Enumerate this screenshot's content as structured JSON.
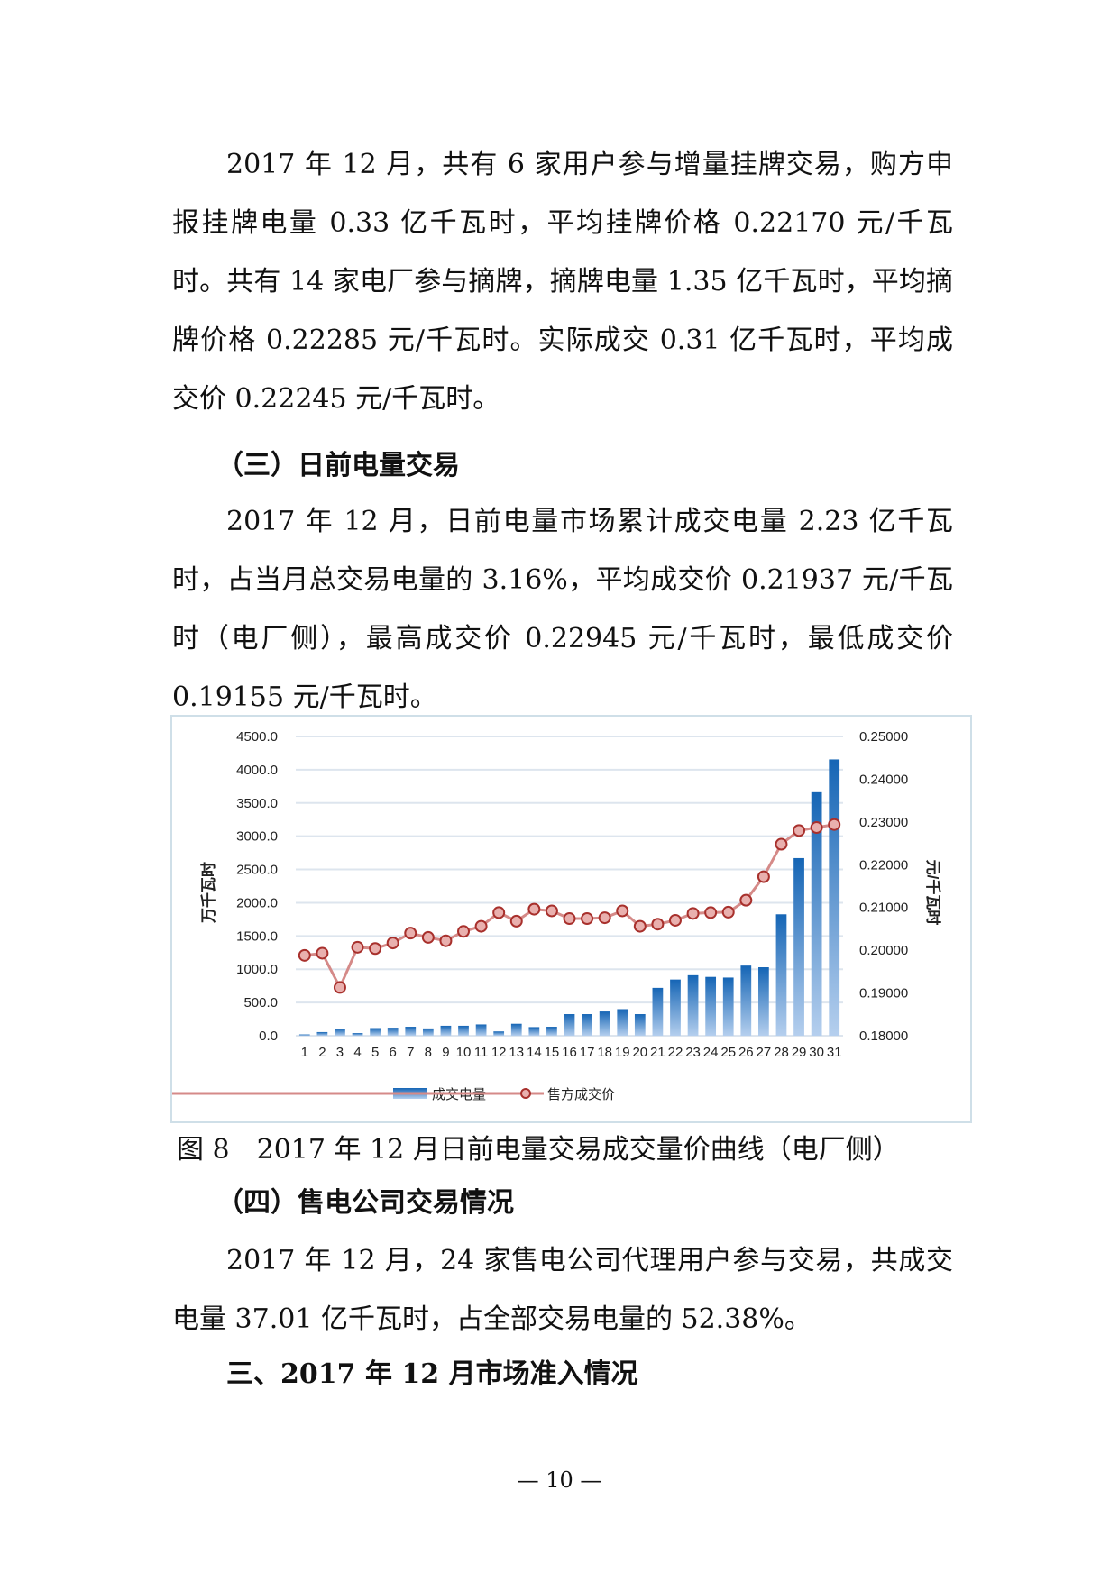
{
  "paragraphs": [
    "2017 年 12 月，共有 6 家用户参与增量挂牌交易，购方申报挂牌电量 0.33 亿千瓦时，平均挂牌价格 0.22170 元/千瓦时。共有 14 家电厂参与摘牌，摘牌电量 1.35 亿千瓦时，平均摘牌价格 0.22285 元/千瓦时。实际成交 0.31 亿千瓦时，平均成交价 0.22245 元/千瓦时。",
    "2017 年 12 月，日前电量市场累计成交电量 2.23 亿千瓦时，占当月总交易电量的 3.16%，平均成交价 0.21937 元/千瓦时（电厂侧），最高成交价 0.22945 元/千瓦时，最低成交价 0.19155 元/千瓦时。",
    "2017 年 12 月，24 家售电公司代理用户参与交易，共成交电量 37.01 亿千瓦时，占全部交易电量的 52.38%。"
  ],
  "headings": {
    "h3": "（三）日前电量交易",
    "h4": "（四）售电公司交易情况",
    "section3": "三、2017 年 12 月市场准入情况"
  },
  "caption": "图 8　2017 年 12 月日前电量交易成交量价曲线（电厂侧）",
  "page_number": "— 10 —",
  "chart_data": {
    "type": "bar+line",
    "categories": [
      "1",
      "2",
      "3",
      "4",
      "5",
      "6",
      "7",
      "8",
      "9",
      "10",
      "11",
      "12",
      "13",
      "14",
      "15",
      "16",
      "17",
      "18",
      "19",
      "20",
      "21",
      "22",
      "23",
      "24",
      "25",
      "26",
      "27",
      "28",
      "29",
      "30",
      "31"
    ],
    "ylabel": "万千瓦时",
    "y2label": "元/千瓦时",
    "ylim": [
      0,
      4500
    ],
    "y2lim": [
      0.18,
      0.25
    ],
    "yticks": [
      "0.0",
      "500.0",
      "1000.0",
      "1500.0",
      "2000.0",
      "2500.0",
      "3000.0",
      "3500.0",
      "4000.0",
      "4500.0"
    ],
    "y2ticks": [
      "0.18000",
      "0.19000",
      "0.20000",
      "0.21000",
      "0.22000",
      "0.23000",
      "0.24000",
      "0.25000"
    ],
    "grid": true,
    "legend_position": "bottom",
    "series": [
      {
        "name": "成交电量",
        "type": "bar",
        "axis": "left",
        "color": "#1f6fbf",
        "values": [
          20,
          55,
          105,
          40,
          115,
          120,
          135,
          110,
          150,
          150,
          170,
          65,
          180,
          130,
          135,
          325,
          325,
          365,
          400,
          325,
          720,
          845,
          910,
          885,
          875,
          1055,
          1030,
          1826,
          2671,
          3662,
          4155
        ]
      },
      {
        "name": "售方成交价",
        "type": "line",
        "axis": "right",
        "color": "#c0504d",
        "values": [
          0.1988,
          0.1993,
          0.1913,
          0.2007,
          0.2004,
          0.2017,
          0.204,
          0.203,
          0.2022,
          0.2044,
          0.2056,
          0.2088,
          0.2068,
          0.2096,
          0.2092,
          0.2074,
          0.2074,
          0.2076,
          0.2092,
          0.2056,
          0.2061,
          0.207,
          0.2086,
          0.2088,
          0.2089,
          0.2117,
          0.2172,
          0.2248,
          0.228,
          0.2287,
          0.2294
        ]
      }
    ]
  }
}
